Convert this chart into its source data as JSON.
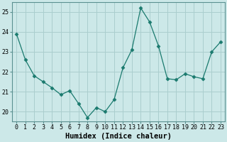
{
  "x": [
    0,
    1,
    2,
    3,
    4,
    5,
    6,
    7,
    8,
    9,
    10,
    11,
    12,
    13,
    14,
    15,
    16,
    17,
    18,
    19,
    20,
    21,
    22,
    23
  ],
  "y": [
    23.9,
    22.6,
    21.8,
    21.5,
    21.2,
    20.85,
    21.05,
    20.4,
    19.7,
    20.2,
    20.0,
    20.6,
    22.2,
    23.1,
    25.2,
    24.5,
    23.3,
    21.65,
    21.6,
    21.9,
    21.75,
    21.65,
    23.0,
    23.5
  ],
  "line_color": "#1a7a6e",
  "marker": "D",
  "marker_size": 2.5,
  "bg_color": "#cce8e8",
  "grid_color": "#aacece",
  "xlabel": "Humidex (Indice chaleur)",
  "ylim": [
    19.5,
    25.5
  ],
  "xlim": [
    -0.5,
    23.5
  ],
  "yticks": [
    20,
    21,
    22,
    23,
    24,
    25
  ],
  "xticks": [
    0,
    1,
    2,
    3,
    4,
    5,
    6,
    7,
    8,
    9,
    10,
    11,
    12,
    13,
    14,
    15,
    16,
    17,
    18,
    19,
    20,
    21,
    22,
    23
  ],
  "tick_fontsize": 6,
  "xlabel_fontsize": 7.5
}
